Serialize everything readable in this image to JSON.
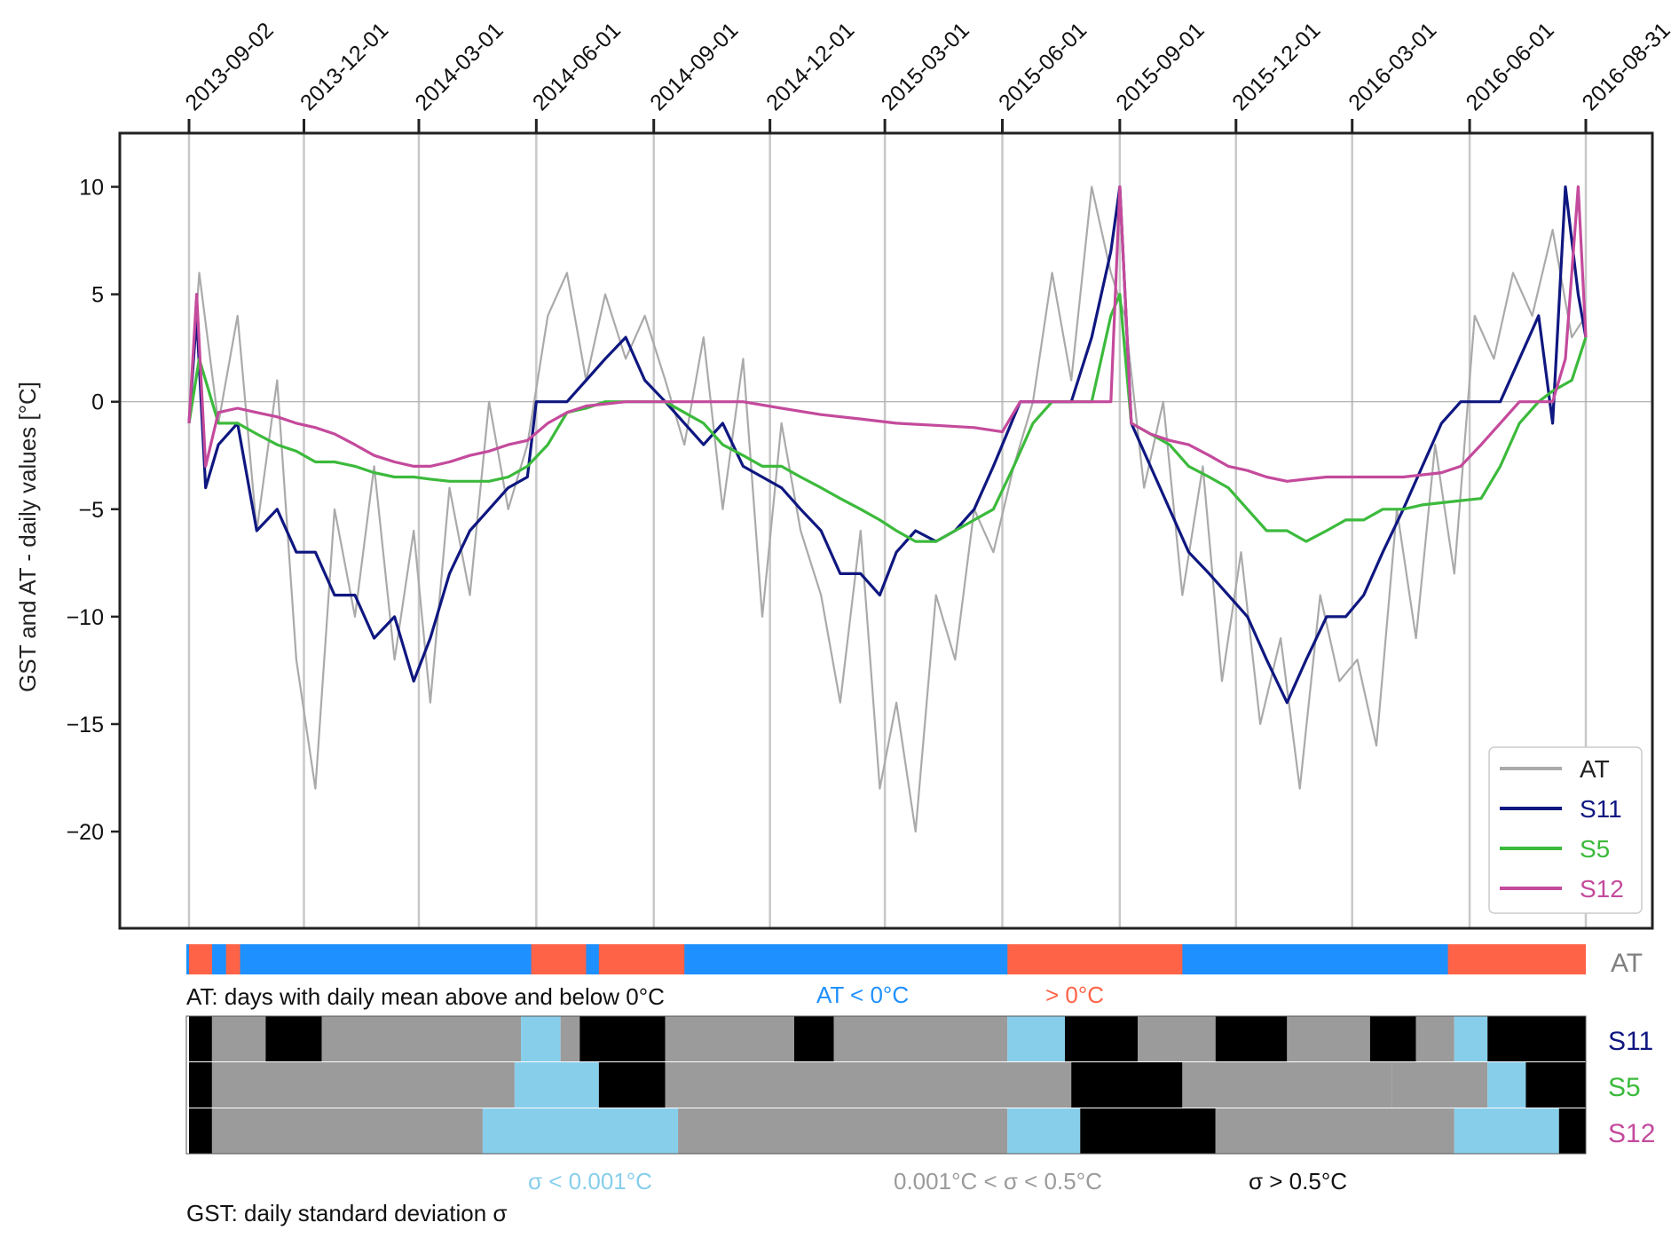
{
  "chart_data": {
    "type": "line",
    "xlabel": "",
    "ylabel": "GST and AT - daily values [°C]",
    "x_range": [
      "2013-09-02",
      "2016-08-31"
    ],
    "ylim": [
      -24.5,
      12.5
    ],
    "y_ticks": [
      10,
      5,
      0,
      -5,
      -10,
      -15,
      -20
    ],
    "x_ticks": [
      "2013-09-02",
      "2013-12-01",
      "2014-03-01",
      "2014-06-01",
      "2014-09-01",
      "2014-12-01",
      "2015-03-01",
      "2015-06-01",
      "2015-09-01",
      "2015-12-01",
      "2016-03-01",
      "2016-06-01",
      "2016-08-31"
    ],
    "vertical_grid": true,
    "zero_line": true,
    "legend_position": "bottom-right",
    "series": [
      {
        "name": "AT",
        "color": "#aaaaaa",
        "x": [
          "2013-09-02",
          "2013-09-10",
          "2013-09-25",
          "2013-10-10",
          "2013-10-25",
          "2013-11-10",
          "2013-11-25",
          "2013-12-10",
          "2013-12-25",
          "2014-01-10",
          "2014-01-25",
          "2014-02-10",
          "2014-02-25",
          "2014-03-10",
          "2014-03-25",
          "2014-04-10",
          "2014-04-25",
          "2014-05-10",
          "2014-05-25",
          "2014-06-10",
          "2014-06-25",
          "2014-07-10",
          "2014-07-25",
          "2014-08-10",
          "2014-08-25",
          "2014-09-10",
          "2014-09-25",
          "2014-10-10",
          "2014-10-25",
          "2014-11-10",
          "2014-11-25",
          "2014-12-10",
          "2014-12-25",
          "2015-01-10",
          "2015-01-25",
          "2015-02-10",
          "2015-02-25",
          "2015-03-10",
          "2015-03-25",
          "2015-04-10",
          "2015-04-25",
          "2015-05-10",
          "2015-05-25",
          "2015-06-10",
          "2015-06-25",
          "2015-07-10",
          "2015-07-25",
          "2015-08-10",
          "2015-08-25",
          "2015-09-05",
          "2015-09-20",
          "2015-10-05",
          "2015-10-20",
          "2015-11-05",
          "2015-11-20",
          "2015-12-05",
          "2015-12-20",
          "2016-01-05",
          "2016-01-20",
          "2016-02-05",
          "2016-02-20",
          "2016-03-05",
          "2016-03-20",
          "2016-04-05",
          "2016-04-20",
          "2016-05-05",
          "2016-05-20",
          "2016-06-05",
          "2016-06-20",
          "2016-07-05",
          "2016-07-20",
          "2016-08-05",
          "2016-08-20",
          "2016-08-31"
        ],
        "values": [
          -1,
          6,
          -1,
          4,
          -6,
          1,
          -12,
          -18,
          -5,
          -10,
          -3,
          -12,
          -6,
          -14,
          -4,
          -9,
          0,
          -5,
          -2,
          4,
          6,
          1,
          5,
          2,
          4,
          1,
          -2,
          3,
          -5,
          2,
          -10,
          -1,
          -6,
          -9,
          -14,
          -6,
          -18,
          -14,
          -20,
          -9,
          -12,
          -5,
          -7,
          -3,
          0,
          6,
          1,
          10,
          6,
          4,
          -4,
          0,
          -9,
          -3,
          -13,
          -7,
          -15,
          -11,
          -18,
          -9,
          -13,
          -12,
          -16,
          -5,
          -11,
          -2,
          -8,
          4,
          2,
          6,
          4,
          8,
          3,
          4
        ]
      },
      {
        "name": "S11",
        "color": "#0f1780",
        "x": [
          "2013-09-02",
          "2013-09-08",
          "2013-09-15",
          "2013-09-25",
          "2013-10-10",
          "2013-10-25",
          "2013-11-10",
          "2013-11-25",
          "2013-12-10",
          "2013-12-25",
          "2014-01-10",
          "2014-01-25",
          "2014-02-10",
          "2014-02-25",
          "2014-03-10",
          "2014-03-25",
          "2014-04-10",
          "2014-04-25",
          "2014-05-10",
          "2014-05-25",
          "2014-06-01",
          "2014-06-25",
          "2014-07-10",
          "2014-07-25",
          "2014-08-10",
          "2014-08-25",
          "2014-09-10",
          "2014-09-25",
          "2014-10-10",
          "2014-10-25",
          "2014-11-10",
          "2014-11-25",
          "2014-12-10",
          "2014-12-25",
          "2015-01-10",
          "2015-01-25",
          "2015-02-10",
          "2015-02-25",
          "2015-03-10",
          "2015-03-25",
          "2015-04-10",
          "2015-04-25",
          "2015-05-10",
          "2015-05-25",
          "2015-06-01",
          "2015-06-15",
          "2015-07-10",
          "2015-07-25",
          "2015-08-10",
          "2015-08-25",
          "2015-09-01",
          "2015-09-10",
          "2015-09-25",
          "2015-10-10",
          "2015-10-25",
          "2015-11-10",
          "2015-11-25",
          "2015-12-10",
          "2015-12-25",
          "2016-01-10",
          "2016-01-25",
          "2016-02-10",
          "2016-02-25",
          "2016-03-10",
          "2016-03-25",
          "2016-04-10",
          "2016-04-25",
          "2016-05-10",
          "2016-05-25",
          "2016-06-10",
          "2016-06-25",
          "2016-07-10",
          "2016-07-25",
          "2016-08-05",
          "2016-08-15",
          "2016-08-25",
          "2016-08-31"
        ],
        "values": [
          -1,
          4,
          -4,
          -2,
          -1,
          -6,
          -5,
          -7,
          -7,
          -9,
          -9,
          -11,
          -10,
          -13,
          -11,
          -8,
          -6,
          -5,
          -4,
          -3.5,
          0,
          0,
          1,
          2,
          3,
          1,
          0,
          -1,
          -2,
          -1,
          -3,
          -3.5,
          -4,
          -5,
          -6,
          -8,
          -8,
          -9,
          -7,
          -6,
          -6.5,
          -6,
          -5,
          -3,
          -2,
          0,
          0,
          0,
          3,
          7,
          10,
          -1,
          -3,
          -5,
          -7,
          -8,
          -9,
          -10,
          -12,
          -14,
          -12,
          -10,
          -10,
          -9,
          -7,
          -5,
          -3,
          -1,
          0,
          0,
          0,
          2,
          4,
          -1,
          10,
          5,
          3
        ]
      },
      {
        "name": "S5",
        "color": "#3cba3c",
        "x": [
          "2013-09-02",
          "2013-09-10",
          "2013-09-25",
          "2013-10-10",
          "2013-10-25",
          "2013-11-10",
          "2013-11-25",
          "2013-12-10",
          "2013-12-25",
          "2014-01-10",
          "2014-01-25",
          "2014-02-10",
          "2014-02-25",
          "2014-03-10",
          "2014-03-25",
          "2014-04-10",
          "2014-04-25",
          "2014-05-10",
          "2014-05-25",
          "2014-06-10",
          "2014-06-25",
          "2014-07-10",
          "2014-07-25",
          "2014-08-10",
          "2014-08-25",
          "2014-09-10",
          "2014-09-25",
          "2014-10-10",
          "2014-10-25",
          "2014-11-10",
          "2014-11-25",
          "2014-12-10",
          "2014-12-25",
          "2015-01-10",
          "2015-01-25",
          "2015-02-10",
          "2015-02-25",
          "2015-03-10",
          "2015-03-25",
          "2015-04-10",
          "2015-04-25",
          "2015-05-10",
          "2015-05-25",
          "2015-06-10",
          "2015-06-25",
          "2015-07-10",
          "2015-07-25",
          "2015-08-10",
          "2015-08-25",
          "2015-09-01",
          "2015-09-10",
          "2015-09-25",
          "2015-10-10",
          "2015-10-25",
          "2015-11-10",
          "2015-11-25",
          "2015-12-10",
          "2015-12-25",
          "2016-01-10",
          "2016-01-25",
          "2016-02-10",
          "2016-02-25",
          "2016-03-10",
          "2016-03-25",
          "2016-04-10",
          "2016-04-25",
          "2016-05-10",
          "2016-05-25",
          "2016-06-10",
          "2016-06-25",
          "2016-07-10",
          "2016-07-25",
          "2016-08-05",
          "2016-08-20",
          "2016-08-31"
        ],
        "values": [
          -1,
          2,
          -1,
          -1,
          -1.5,
          -2,
          -2.3,
          -2.8,
          -2.8,
          -3,
          -3.3,
          -3.5,
          -3.5,
          -3.6,
          -3.7,
          -3.7,
          -3.7,
          -3.5,
          -3,
          -2,
          -0.5,
          -0.3,
          0,
          0,
          0,
          0,
          -0.5,
          -1,
          -2,
          -2.5,
          -3,
          -3,
          -3.5,
          -4,
          -4.5,
          -5,
          -5.5,
          -6,
          -6.5,
          -6.5,
          -6,
          -5.5,
          -5,
          -3,
          -1,
          0,
          0,
          0,
          4,
          5,
          -1,
          -1.5,
          -2,
          -3,
          -3.5,
          -4,
          -5,
          -6,
          -6,
          -6.5,
          -6,
          -5.5,
          -5.5,
          -5,
          -5,
          -4.8,
          -4.7,
          -4.6,
          -4.5,
          -3,
          -1,
          0,
          0.5,
          1,
          3
        ]
      },
      {
        "name": "S12",
        "color": "#c44a9c",
        "x": [
          "2013-09-02",
          "2013-09-08",
          "2013-09-15",
          "2013-09-25",
          "2013-10-10",
          "2013-10-25",
          "2013-11-10",
          "2013-11-25",
          "2013-12-10",
          "2013-12-25",
          "2014-01-10",
          "2014-01-25",
          "2014-02-10",
          "2014-02-25",
          "2014-03-10",
          "2014-03-25",
          "2014-04-10",
          "2014-04-25",
          "2014-05-10",
          "2014-05-25",
          "2014-06-10",
          "2014-06-25",
          "2014-07-10",
          "2014-08-10",
          "2014-09-10",
          "2014-10-10",
          "2014-11-10",
          "2014-12-10",
          "2015-01-10",
          "2015-02-10",
          "2015-03-10",
          "2015-04-10",
          "2015-05-10",
          "2015-06-01",
          "2015-06-15",
          "2015-07-10",
          "2015-08-10",
          "2015-08-25",
          "2015-09-01",
          "2015-09-10",
          "2015-09-25",
          "2015-10-10",
          "2015-10-25",
          "2015-11-10",
          "2015-11-25",
          "2015-12-10",
          "2015-12-25",
          "2016-01-10",
          "2016-01-25",
          "2016-02-10",
          "2016-03-10",
          "2016-04-10",
          "2016-05-10",
          "2016-05-25",
          "2016-06-10",
          "2016-06-25",
          "2016-07-10",
          "2016-08-05",
          "2016-08-15",
          "2016-08-25",
          "2016-08-31"
        ],
        "values": [
          -1,
          5,
          -3,
          -0.5,
          -0.3,
          -0.5,
          -0.7,
          -1,
          -1.2,
          -1.5,
          -2,
          -2.5,
          -2.8,
          -3,
          -3,
          -2.8,
          -2.5,
          -2.3,
          -2,
          -1.8,
          -1,
          -0.5,
          -0.2,
          0,
          0,
          0,
          0,
          -0.3,
          -0.6,
          -0.8,
          -1,
          -1.1,
          -1.2,
          -1.4,
          0,
          0,
          0,
          0,
          10,
          -1,
          -1.5,
          -1.8,
          -2,
          -2.5,
          -3,
          -3.2,
          -3.5,
          -3.7,
          -3.6,
          -3.5,
          -3.5,
          -3.5,
          -3.3,
          -3,
          -2,
          -1,
          0,
          0,
          2,
          10,
          3
        ]
      }
    ]
  },
  "at_strip": {
    "label": "AT",
    "caption": "AT: days with daily mean above and below 0°C",
    "below_label": "AT < 0°C",
    "above_label": "> 0°C",
    "below_color": "#1e90ff",
    "above_color": "#ff6347",
    "above_periods": [
      [
        "2013-09-02",
        "2013-09-20"
      ],
      [
        "2013-10-01",
        "2013-10-12"
      ],
      [
        "2014-05-28",
        "2014-07-10"
      ],
      [
        "2014-07-20",
        "2014-09-25"
      ],
      [
        "2015-06-05",
        "2015-10-20"
      ],
      [
        "2016-05-15",
        "2016-08-31"
      ]
    ]
  },
  "gst_strip": {
    "caption": "GST: daily standard deviation σ",
    "low_label": "σ < 0.001°C",
    "mid_label": "0.001°C < σ < 0.5°C",
    "high_label": "σ > 0.5°C",
    "low_color": "#87ceeb",
    "mid_color": "#9b9b9b",
    "high_color": "#000000",
    "rows": [
      {
        "name": "S11",
        "color": "#0f1780",
        "periods": [
          [
            "2013-09-02",
            "2013-09-20",
            "high"
          ],
          [
            "2013-09-20",
            "2013-11-01",
            "mid"
          ],
          [
            "2013-11-01",
            "2013-12-15",
            "high"
          ],
          [
            "2013-12-15",
            "2014-05-20",
            "mid"
          ],
          [
            "2014-05-20",
            "2014-06-20",
            "low"
          ],
          [
            "2014-06-20",
            "2014-07-05",
            "mid"
          ],
          [
            "2014-07-05",
            "2014-09-10",
            "high"
          ],
          [
            "2014-09-10",
            "2014-12-20",
            "mid"
          ],
          [
            "2014-12-20",
            "2015-01-20",
            "high"
          ],
          [
            "2015-01-20",
            "2015-06-05",
            "mid"
          ],
          [
            "2015-06-05",
            "2015-07-20",
            "low"
          ],
          [
            "2015-07-20",
            "2015-09-15",
            "high"
          ],
          [
            "2015-09-15",
            "2015-11-15",
            "mid"
          ],
          [
            "2015-11-15",
            "2016-01-10",
            "high"
          ],
          [
            "2016-01-10",
            "2016-03-15",
            "mid"
          ],
          [
            "2016-03-15",
            "2016-04-20",
            "high"
          ],
          [
            "2016-04-20",
            "2016-05-20",
            "mid"
          ],
          [
            "2016-05-20",
            "2016-06-15",
            "low"
          ],
          [
            "2016-06-15",
            "2016-08-31",
            "high"
          ]
        ]
      },
      {
        "name": "S5",
        "color": "#3cba3c",
        "periods": [
          [
            "2013-09-02",
            "2013-09-20",
            "high"
          ],
          [
            "2013-09-20",
            "2014-05-15",
            "mid"
          ],
          [
            "2014-05-15",
            "2014-07-20",
            "low"
          ],
          [
            "2014-07-20",
            "2014-09-10",
            "high"
          ],
          [
            "2014-09-10",
            "2015-07-25",
            "mid"
          ],
          [
            "2015-07-25",
            "2015-10-20",
            "high"
          ],
          [
            "2015-10-20",
            "2016-04-01",
            "mid"
          ],
          [
            "2016-04-01",
            "2016-06-15",
            "mid"
          ],
          [
            "2016-06-15",
            "2016-07-15",
            "low"
          ],
          [
            "2016-07-15",
            "2016-08-31",
            "high"
          ]
        ]
      },
      {
        "name": "S12",
        "color": "#c44a9c",
        "periods": [
          [
            "2013-09-02",
            "2013-09-20",
            "high"
          ],
          [
            "2013-09-20",
            "2014-04-20",
            "mid"
          ],
          [
            "2014-04-20",
            "2014-09-20",
            "low"
          ],
          [
            "2014-09-20",
            "2015-06-05",
            "mid"
          ],
          [
            "2015-06-05",
            "2015-08-01",
            "low"
          ],
          [
            "2015-08-01",
            "2015-11-15",
            "high"
          ],
          [
            "2015-11-15",
            "2016-05-20",
            "mid"
          ],
          [
            "2016-05-20",
            "2016-08-10",
            "low"
          ],
          [
            "2016-08-10",
            "2016-08-31",
            "high"
          ]
        ]
      }
    ]
  }
}
